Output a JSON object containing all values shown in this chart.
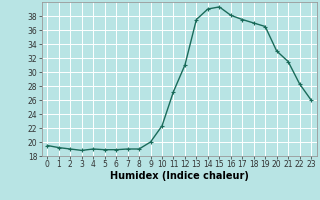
{
  "title": "",
  "xlabel": "Humidex (Indice chaleur)",
  "ylabel": "",
  "x": [
    0,
    1,
    2,
    3,
    4,
    5,
    6,
    7,
    8,
    9,
    10,
    11,
    12,
    13,
    14,
    15,
    16,
    17,
    18,
    19,
    20,
    21,
    22,
    23
  ],
  "y": [
    19.5,
    19.2,
    19.0,
    18.8,
    19.0,
    18.9,
    18.9,
    19.0,
    19.0,
    20.0,
    22.3,
    27.2,
    31.0,
    37.5,
    39.0,
    39.3,
    38.1,
    37.5,
    37.0,
    36.5,
    33.0,
    31.5,
    28.3,
    26.0
  ],
  "line_color": "#1a6b5a",
  "marker": "+",
  "marker_size": 3,
  "line_width": 1.0,
  "bg_color": "#b8e4e4",
  "grid_color": "#ffffff",
  "ylim": [
    18,
    40
  ],
  "xlim": [
    -0.5,
    23.5
  ],
  "yticks": [
    18,
    20,
    22,
    24,
    26,
    28,
    30,
    32,
    34,
    36,
    38
  ],
  "xticks": [
    0,
    1,
    2,
    3,
    4,
    5,
    6,
    7,
    8,
    9,
    10,
    11,
    12,
    13,
    14,
    15,
    16,
    17,
    18,
    19,
    20,
    21,
    22,
    23
  ],
  "tick_fontsize": 5.5,
  "label_fontsize": 7,
  "markeredgewidth": 0.8
}
